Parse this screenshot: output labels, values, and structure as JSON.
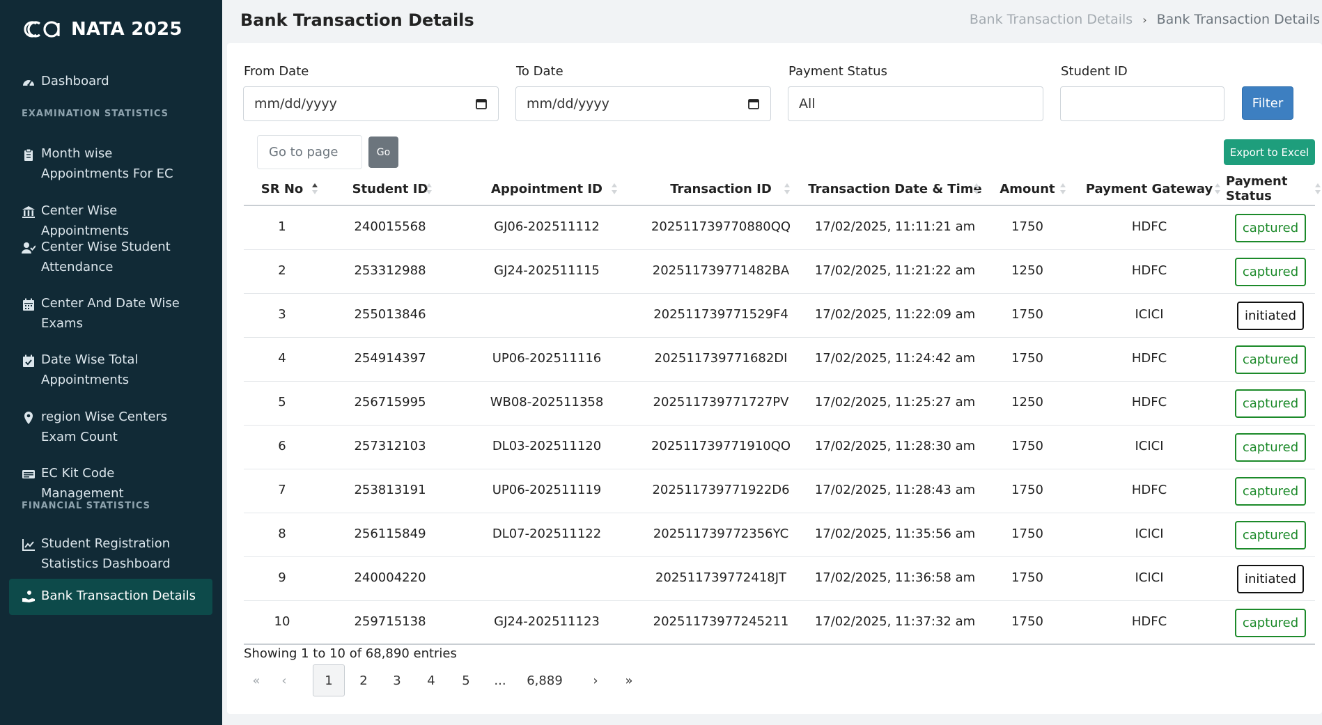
{
  "brand": {
    "name": "NATA 2025",
    "logo_icon": "ca-logo-icon"
  },
  "sidebar": {
    "items": [
      {
        "label": "Dashboard",
        "icon": "gauge-icon"
      },
      {
        "label": "Month wise Appointments For EC",
        "icon": "clipboard-icon"
      },
      {
        "label": "Center Wise Appointments",
        "icon": "bank-building-icon"
      },
      {
        "label": "Center Wise Student Attendance",
        "icon": "user-check-icon"
      },
      {
        "label": "Center And Date Wise Exams",
        "icon": "calendar-icon"
      },
      {
        "label": "Date Wise Total Appointments",
        "icon": "calendar-check-icon"
      },
      {
        "label": "region Wise Centers Exam Count",
        "icon": "map-pin-icon"
      },
      {
        "label": "EC Kit Code Management",
        "icon": "id-card-icon"
      },
      {
        "label": "Student Registration Statistics Dashboard",
        "icon": "chart-line-icon"
      },
      {
        "label": "Bank Transaction Details",
        "icon": "hand-coin-icon"
      }
    ],
    "sections": {
      "examination": "EXAMINATION STATISTICS",
      "financial": "FINANCIAL STATISTICS"
    },
    "active_color": "#0d4a4a"
  },
  "header": {
    "title": "Bank Transaction Details",
    "breadcrumb": [
      "Bank Transaction Details",
      "Bank Transaction Details"
    ]
  },
  "filters": {
    "from_date": {
      "label": "From Date",
      "placeholder": "mm/dd/yyyy"
    },
    "to_date": {
      "label": "To Date",
      "placeholder": "mm/dd/yyyy"
    },
    "payment_status": {
      "label": "Payment Status",
      "value": "All"
    },
    "student_id": {
      "label": "Student ID",
      "value": ""
    },
    "filter_button": "Filter"
  },
  "toolbar": {
    "goto_placeholder": "Go to page",
    "go_button": "Go",
    "export_button": "Export to Excel"
  },
  "table": {
    "columns": [
      "SR No",
      "Student ID",
      "Appointment ID",
      "Transaction ID",
      "Transaction Date & Time",
      "Amount",
      "Payment Gateway",
      "Payment Status"
    ],
    "rows": [
      {
        "sr": "1",
        "student_id": "240015568",
        "appointment_id": "GJ06-202511112",
        "transaction_id": "202511739770880QQ",
        "datetime": "17/02/2025, 11:11:21 am",
        "amount": "1750",
        "gateway": "HDFC",
        "status": "captured"
      },
      {
        "sr": "2",
        "student_id": "253312988",
        "appointment_id": "GJ24-202511115",
        "transaction_id": "202511739771482BA",
        "datetime": "17/02/2025, 11:21:22 am",
        "amount": "1250",
        "gateway": "HDFC",
        "status": "captured"
      },
      {
        "sr": "3",
        "student_id": "255013846",
        "appointment_id": "",
        "transaction_id": "202511739771529F4",
        "datetime": "17/02/2025, 11:22:09 am",
        "amount": "1750",
        "gateway": "ICICI",
        "status": "initiated"
      },
      {
        "sr": "4",
        "student_id": "254914397",
        "appointment_id": "UP06-202511116",
        "transaction_id": "202511739771682DI",
        "datetime": "17/02/2025, 11:24:42 am",
        "amount": "1750",
        "gateway": "HDFC",
        "status": "captured"
      },
      {
        "sr": "5",
        "student_id": "256715995",
        "appointment_id": "WB08-202511358",
        "transaction_id": "202511739771727PV",
        "datetime": "17/02/2025, 11:25:27 am",
        "amount": "1250",
        "gateway": "HDFC",
        "status": "captured"
      },
      {
        "sr": "6",
        "student_id": "257312103",
        "appointment_id": "DL03-202511120",
        "transaction_id": "202511739771910QO",
        "datetime": "17/02/2025, 11:28:30 am",
        "amount": "1750",
        "gateway": "ICICI",
        "status": "captured"
      },
      {
        "sr": "7",
        "student_id": "253813191",
        "appointment_id": "UP06-202511119",
        "transaction_id": "202511739771922D6",
        "datetime": "17/02/2025, 11:28:43 am",
        "amount": "1750",
        "gateway": "HDFC",
        "status": "captured"
      },
      {
        "sr": "8",
        "student_id": "256115849",
        "appointment_id": "DL07-202511122",
        "transaction_id": "202511739772356YC",
        "datetime": "17/02/2025, 11:35:56 am",
        "amount": "1750",
        "gateway": "ICICI",
        "status": "captured"
      },
      {
        "sr": "9",
        "student_id": "240004220",
        "appointment_id": "",
        "transaction_id": "202511739772418JT",
        "datetime": "17/02/2025, 11:36:58 am",
        "amount": "1750",
        "gateway": "ICICI",
        "status": "initiated"
      },
      {
        "sr": "10",
        "student_id": "259715138",
        "appointment_id": "GJ24-202511123",
        "transaction_id": "20251173977245211",
        "datetime": "17/02/2025, 11:37:32 am",
        "amount": "1750",
        "gateway": "HDFC",
        "status": "captured"
      }
    ],
    "status_colors": {
      "captured": "#1c8a2a",
      "initiated": "#111111"
    }
  },
  "footer": {
    "entries_text": "Showing 1 to 10 of 68,890 entries",
    "pagination": [
      "«",
      "‹",
      "1",
      "2",
      "3",
      "4",
      "5",
      "...",
      "6,889",
      "›",
      "»"
    ],
    "current_page": "1"
  }
}
